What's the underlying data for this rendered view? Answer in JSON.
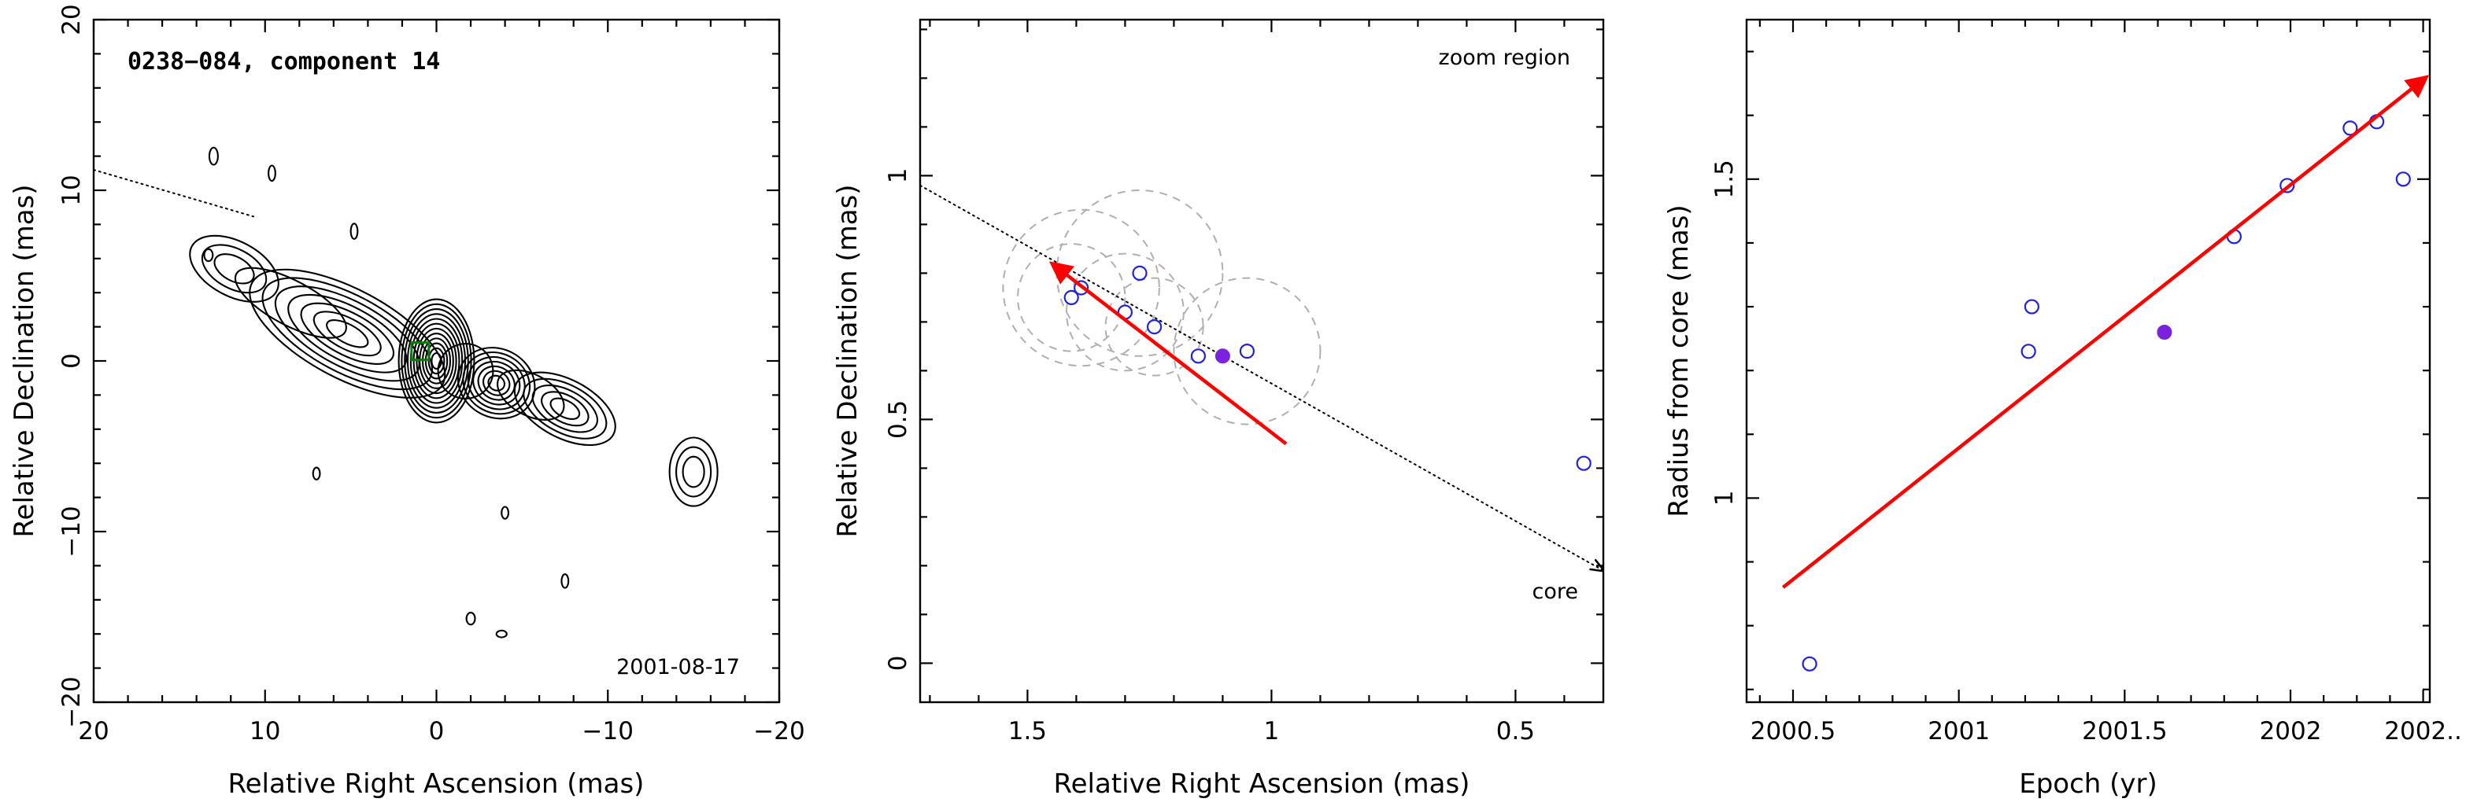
{
  "colors": {
    "observation": "#2222dd",
    "current_epoch": "#7a22dd",
    "motion": "#ff0000",
    "guide": "#000000",
    "beam_marker": "#0b7a0b",
    "fit_ellipse": "#b0b0b0"
  },
  "chart_data": [
    {
      "type": "contour",
      "title": "0238−084, component 14",
      "epoch_label": "2001-08-17",
      "xlabel": "Relative Right Ascension (mas)",
      "ylabel": "Relative Declination (mas)",
      "xlim": [
        20,
        -20
      ],
      "ylim": [
        -20,
        20
      ],
      "xticks": [
        20,
        10,
        0,
        -10,
        -20
      ],
      "yticks": [
        -20,
        -10,
        0,
        10,
        20
      ],
      "xtick_labels": [
        "20",
        "10",
        "0",
        "−10",
        "−20"
      ],
      "ytick_labels": [
        "−20",
        "−10",
        "0",
        "10",
        "20"
      ],
      "component_position": [
        0.95,
        0.57
      ],
      "jet_axis": {
        "angle_deg": 62,
        "x_start": 20,
        "y_start": 11.2
      },
      "emission_regions": [
        {
          "x": 11.8,
          "y": 5.4,
          "peak": 3
        },
        {
          "x": 5.2,
          "y": 1.6,
          "peak": 7
        },
        {
          "x": 0,
          "y": 0,
          "peak": 12
        },
        {
          "x": -3.5,
          "y": -1.3,
          "peak": 7
        },
        {
          "x": -7.5,
          "y": -2.8,
          "peak": 5
        },
        {
          "x": -15,
          "y": -6.5,
          "peak": 3
        }
      ]
    },
    {
      "type": "scatter",
      "corner_label": "zoom region",
      "core_label": "core",
      "xlabel": "Relative Right Ascension (mas)",
      "ylabel": "Relative Declination (mas)",
      "xlim": [
        1.72,
        0.32
      ],
      "ylim": [
        -0.08,
        1.32
      ],
      "xticks": [
        1.5,
        1,
        0.5
      ],
      "yticks": [
        0,
        0.5,
        1
      ],
      "xtick_labels": [
        "1.5",
        "1",
        "0.5"
      ],
      "ytick_labels": [
        "0",
        "0.5",
        "1"
      ],
      "x": [
        1.41,
        1.39,
        1.3,
        1.27,
        1.24,
        1.15,
        1.05,
        0.36
      ],
      "y": [
        0.75,
        0.77,
        0.72,
        0.8,
        0.69,
        0.63,
        0.64,
        0.41
      ],
      "current_epoch": {
        "x": 1.1,
        "y": 0.63
      },
      "fit_circles": [
        {
          "x": 1.41,
          "y": 0.75,
          "r": 0.11
        },
        {
          "x": 1.39,
          "y": 0.77,
          "r": 0.16
        },
        {
          "x": 1.3,
          "y": 0.72,
          "r": 0.12
        },
        {
          "x": 1.27,
          "y": 0.8,
          "r": 0.17
        },
        {
          "x": 1.24,
          "y": 0.69,
          "r": 0.1
        },
        {
          "x": 1.05,
          "y": 0.64,
          "r": 0.15
        }
      ],
      "motion_vector": {
        "from": [
          0.97,
          0.45
        ],
        "to": [
          1.45,
          0.82
        ]
      },
      "jet_axis": {
        "from": [
          1.72,
          0.98
        ],
        "to": [
          0.32,
          0.19
        ]
      }
    },
    {
      "type": "scatter",
      "xlabel": "Epoch (yr)",
      "ylabel": "Radius from core (mas)",
      "xlim": [
        2000.36,
        2002.42
      ],
      "ylim": [
        0.68,
        1.75
      ],
      "xticks": [
        2000.5,
        2001,
        2001.5,
        2002,
        2002.4
      ],
      "yticks": [
        1,
        1.5
      ],
      "xtick_labels": [
        "2000.5",
        "2001",
        "2001.5",
        "2002",
        "2002.."
      ],
      "ytick_labels": [
        "1",
        "1.5"
      ],
      "x": [
        2000.55,
        2001.21,
        2001.22,
        2001.83,
        2001.99,
        2002.18,
        2002.26,
        2002.34
      ],
      "y": [
        0.74,
        1.23,
        1.3,
        1.41,
        1.49,
        1.58,
        1.59,
        1.5
      ],
      "current_epoch": {
        "x": 2001.62,
        "y": 1.26
      },
      "motion_vector": {
        "from": [
          2000.47,
          0.86
        ],
        "to": [
          2002.41,
          1.66
        ]
      }
    }
  ]
}
